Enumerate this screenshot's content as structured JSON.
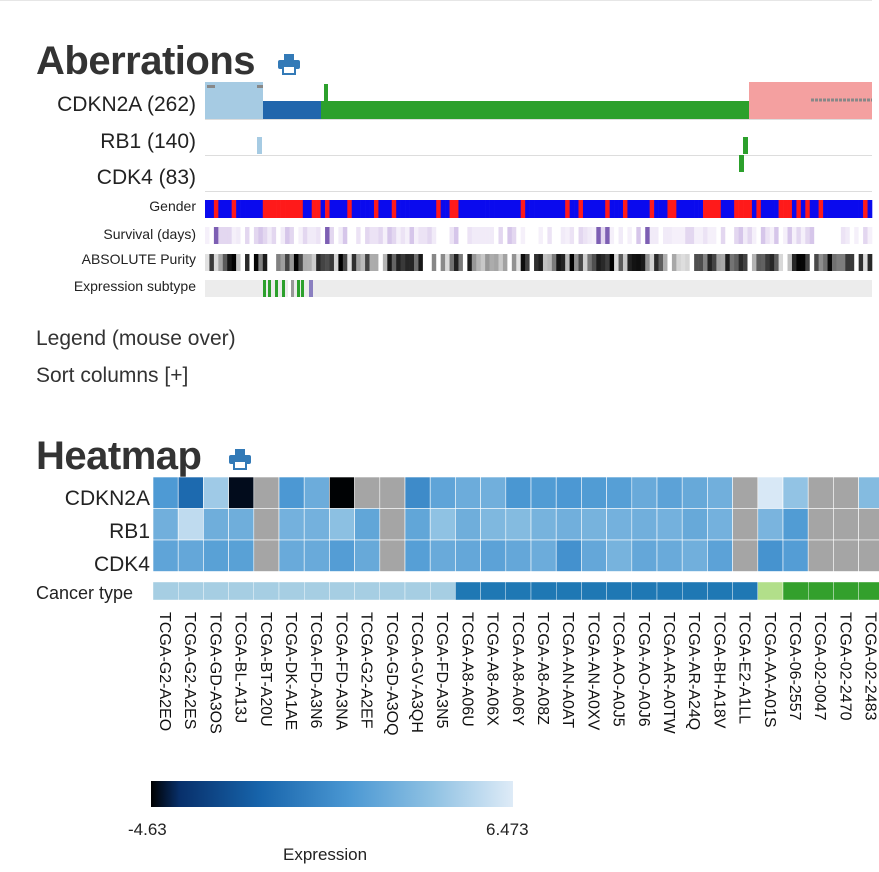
{
  "aberrations": {
    "title": "Aberrations",
    "genes": [
      "CDKN2A (262)",
      "RB1 (140)",
      "CDK4 (83)"
    ],
    "tracks": [
      "Gender",
      "Survival (days)",
      "ABSOLUTE Purity",
      "Expression subtype"
    ],
    "legend_link": "Legend (mouse over)",
    "sort_link": "Sort columns [+]"
  },
  "heatmap": {
    "title": "Heatmap",
    "genes": [
      "CDKN2A",
      "RB1",
      "CDK4"
    ],
    "cancer_type_label": "Cancer type",
    "samples": [
      "TCGA-G2-A2EO",
      "TCGA-G2-A2ES",
      "TCGA-GD-A3OS",
      "TCGA-BL-A13J",
      "TCGA-BT-A20U",
      "TCGA-DK-A1AE",
      "TCGA-FD-A3N6",
      "TCGA-FD-A3NA",
      "TCGA-G2-A2EF",
      "TCGA-GD-A3OQ",
      "TCGA-GV-A3QH",
      "TCGA-FD-A3N5",
      "TCGA-A8-A06U",
      "TCGA-A8-A06X",
      "TCGA-A8-A06Y",
      "TCGA-A8-A08Z",
      "TCGA-AN-A0AT",
      "TCGA-AN-A0XV",
      "TCGA-AO-A0J5",
      "TCGA-AO-A0J6",
      "TCGA-AR-A0TW",
      "TCGA-AR-A24Q",
      "TCGA-BH-A18V",
      "TCGA-E2-A1LL",
      "TCGA-AA-A01S",
      "TCGA-06-2557",
      "TCGA-02-0047",
      "TCGA-02-2470",
      "TCGA-02-2483"
    ],
    "colorbar": {
      "min_label": "-4.63",
      "max_label": "6.473",
      "title": "Expression"
    }
  },
  "colors": {
    "amplification": "#f4a0a0",
    "deep_deletion": "#2166ac",
    "shallow_deletion": "#a6cbe3",
    "missense": "#2ca02c",
    "female": "#ff1a1a",
    "male": "#0a0aee",
    "missing": "#ececec",
    "print_icon": "#337ab7",
    "cancer_type": [
      "#a6cee3",
      "#1f78b4",
      "#b2df8a",
      "#33a02c"
    ],
    "heatmap_na": "#a5a5a5"
  },
  "chart_data": {
    "type": "heatmap",
    "rows": [
      "CDKN2A",
      "RB1",
      "CDK4"
    ],
    "columns": [
      "TCGA-G2-A2EO",
      "TCGA-G2-A2ES",
      "TCGA-GD-A3OS",
      "TCGA-BL-A13J",
      "TCGA-BT-A20U",
      "TCGA-DK-A1AE",
      "TCGA-FD-A3N6",
      "TCGA-FD-A3NA",
      "TCGA-G2-A2EF",
      "TCGA-GD-A3OQ",
      "TCGA-GV-A3QH",
      "TCGA-FD-A3N5",
      "TCGA-A8-A06U",
      "TCGA-A8-A06X",
      "TCGA-A8-A06Y",
      "TCGA-A8-A08Z",
      "TCGA-AN-A0AT",
      "TCGA-AN-A0XV",
      "TCGA-AO-A0J5",
      "TCGA-AO-A0J6",
      "TCGA-AR-A0TW",
      "TCGA-AR-A24Q",
      "TCGA-BH-A18V",
      "TCGA-E2-A1LL",
      "TCGA-AA-A01S",
      "TCGA-06-2557",
      "TCGA-02-0047",
      "TCGA-02-2470",
      "TCGA-02-2483"
    ],
    "values": [
      [
        1.6,
        -1.0,
        4.5,
        -4.4,
        null,
        1.5,
        2.7,
        -4.6,
        null,
        null,
        0.8,
        2.2,
        2.7,
        2.9,
        1.4,
        1.7,
        1.5,
        1.7,
        1.9,
        2.6,
        2.1,
        2.5,
        2.9,
        null,
        6.3,
        4.1,
        null,
        null,
        3.6
      ],
      [
        2.9,
        5.5,
        2.8,
        2.8,
        null,
        3.0,
        3.0,
        3.9,
        2.3,
        null,
        2.3,
        4.0,
        2.8,
        3.4,
        3.6,
        3.1,
        2.9,
        3.1,
        3.0,
        2.9,
        3.0,
        2.5,
        3.0,
        null,
        3.2,
        1.7,
        null,
        null,
        null
      ],
      [
        2.2,
        2.4,
        2.0,
        2.0,
        null,
        2.6,
        2.6,
        1.8,
        2.5,
        null,
        1.9,
        2.6,
        2.4,
        2.1,
        2.4,
        2.7,
        1.1,
        2.4,
        3.1,
        2.4,
        2.6,
        2.9,
        2.1,
        null,
        1.2,
        1.8,
        null,
        null,
        null
      ]
    ],
    "cancer_type_index": [
      0,
      0,
      0,
      0,
      0,
      0,
      0,
      0,
      0,
      0,
      0,
      0,
      1,
      1,
      1,
      1,
      1,
      1,
      1,
      1,
      1,
      1,
      1,
      1,
      2,
      3,
      3,
      3,
      3
    ],
    "range": [
      -4.63,
      6.473
    ],
    "colorbar_title": "Expression"
  }
}
